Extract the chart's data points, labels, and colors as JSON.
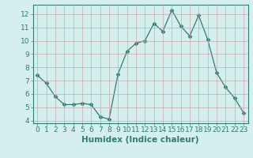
{
  "x": [
    0,
    1,
    2,
    3,
    4,
    5,
    6,
    7,
    8,
    9,
    10,
    11,
    12,
    13,
    14,
    15,
    16,
    17,
    18,
    19,
    20,
    21,
    22,
    23
  ],
  "y": [
    7.4,
    6.8,
    5.8,
    5.2,
    5.2,
    5.3,
    5.2,
    4.3,
    4.1,
    7.5,
    9.2,
    9.8,
    10.0,
    11.3,
    10.7,
    12.3,
    11.1,
    10.35,
    11.9,
    10.1,
    7.6,
    6.5,
    5.7,
    4.6
  ],
  "xlabel": "Humidex (Indice chaleur)",
  "ylim": [
    3.8,
    12.7
  ],
  "xlim": [
    -0.5,
    23.5
  ],
  "yticks": [
    4,
    5,
    6,
    7,
    8,
    9,
    10,
    11,
    12
  ],
  "xticks": [
    0,
    1,
    2,
    3,
    4,
    5,
    6,
    7,
    8,
    9,
    10,
    11,
    12,
    13,
    14,
    15,
    16,
    17,
    18,
    19,
    20,
    21,
    22,
    23
  ],
  "line_color": "#2e7d6e",
  "marker": "D",
  "marker_size": 2.5,
  "bg_color": "#d5efef",
  "grid_color_v": "#c8a8a8",
  "grid_color_h": "#c8a8a8",
  "tick_label_fontsize": 6.5,
  "xlabel_fontsize": 7.5
}
